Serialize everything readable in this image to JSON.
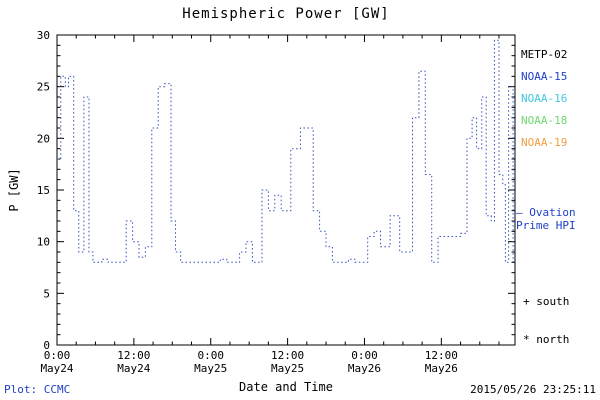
{
  "header": {
    "title": "Hemispheric Power [GW]"
  },
  "axes": {
    "ylabel": "P [GW]",
    "xlabel": "Date and Time",
    "y_ticks": [
      0,
      5,
      10,
      15,
      20,
      25,
      30
    ],
    "x_ticks": [
      {
        "hour": 0,
        "time": "0:00",
        "date": "May24"
      },
      {
        "hour": 12,
        "time": "12:00",
        "date": "May24"
      },
      {
        "hour": 24,
        "time": "0:00",
        "date": "May25"
      },
      {
        "hour": 36,
        "time": "12:00",
        "date": "May25"
      },
      {
        "hour": 48,
        "time": "0:00",
        "date": "May26"
      },
      {
        "hour": 60,
        "time": "12:00",
        "date": "May26"
      }
    ]
  },
  "legend": {
    "items": [
      {
        "label": "METP-02",
        "color": "#000000"
      },
      {
        "label": "NOAA-15",
        "color": "#2040c8"
      },
      {
        "label": "NOAA-16",
        "color": "#40c8e0"
      },
      {
        "label": "NOAA-18",
        "color": "#70d870"
      },
      {
        "label": "NOAA-19",
        "color": "#f0a040"
      }
    ]
  },
  "annotations": {
    "ovation": {
      "dash": "–",
      "line1": "Ovation",
      "line2": "Prime HPI",
      "color": "#2040c8"
    },
    "south": "+ south",
    "north": "* north"
  },
  "footer": {
    "credit": "Plot: CCMC",
    "credit_color": "#2040c8",
    "timestamp": "2015/05/26 23:25:11"
  },
  "chart_data": {
    "type": "line",
    "subtype": "step",
    "line_style": "dotted",
    "line_color": "#3050c0",
    "title": "Hemispheric Power [GW]",
    "xlabel": "Date and Time",
    "ylabel": "P [GW]",
    "ylim": [
      0,
      30
    ],
    "xlim_hours": [
      0,
      71.5
    ],
    "x_tick_hours": [
      0,
      12,
      24,
      36,
      48,
      60
    ],
    "legend_position": "right-outside",
    "grid": false,
    "series": [
      {
        "name": "Ovation Prime HPI (NOAA-15)",
        "points": [
          [
            0,
            18
          ],
          [
            0.6,
            26
          ],
          [
            1.3,
            25
          ],
          [
            1.8,
            26
          ],
          [
            2.6,
            13
          ],
          [
            3.4,
            9
          ],
          [
            4.2,
            24
          ],
          [
            5,
            9
          ],
          [
            5.6,
            8
          ],
          [
            7,
            8.3
          ],
          [
            8,
            8
          ],
          [
            10.8,
            12
          ],
          [
            11.8,
            10
          ],
          [
            12.8,
            8.5
          ],
          [
            13.8,
            9.5
          ],
          [
            14.8,
            21
          ],
          [
            15.8,
            25
          ],
          [
            16.8,
            25.3
          ],
          [
            17.8,
            12
          ],
          [
            18.5,
            9
          ],
          [
            19.3,
            8
          ],
          [
            25.5,
            8.3
          ],
          [
            26.5,
            8
          ],
          [
            28.5,
            9
          ],
          [
            29.5,
            10
          ],
          [
            30.5,
            8
          ],
          [
            32,
            15
          ],
          [
            33,
            13
          ],
          [
            34,
            14.5
          ],
          [
            35,
            13
          ],
          [
            36.5,
            19
          ],
          [
            38,
            21
          ],
          [
            40,
            13
          ],
          [
            41,
            11
          ],
          [
            42,
            9.5
          ],
          [
            43,
            8
          ],
          [
            45.5,
            8.3
          ],
          [
            46.5,
            8
          ],
          [
            48.5,
            10.5
          ],
          [
            49.5,
            11
          ],
          [
            50.5,
            9.5
          ],
          [
            52,
            12.5
          ],
          [
            53.5,
            9
          ],
          [
            55.5,
            22
          ],
          [
            56.5,
            26.5
          ],
          [
            57.5,
            16.5
          ],
          [
            58.5,
            8
          ],
          [
            59.5,
            10.5
          ],
          [
            63,
            10.8
          ],
          [
            64,
            20
          ],
          [
            64.8,
            22
          ],
          [
            65.5,
            19
          ],
          [
            66.3,
            24
          ],
          [
            67,
            12.5
          ],
          [
            67.8,
            12
          ],
          [
            68.3,
            29.5
          ],
          [
            69,
            16.5
          ],
          [
            69.6,
            15.5
          ],
          [
            70,
            8
          ],
          [
            70.5,
            25
          ],
          [
            71.2,
            8
          ],
          [
            71.5,
            8
          ]
        ]
      }
    ]
  }
}
